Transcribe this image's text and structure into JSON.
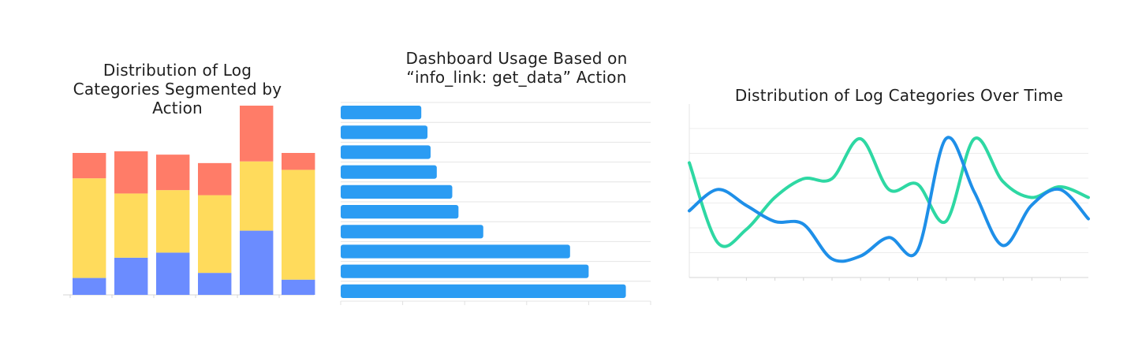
{
  "chart_data": [
    {
      "type": "bar",
      "stacked": true,
      "title_lines": [
        "Distribution of Log",
        "Categories Segmented by",
        "Action"
      ],
      "categories": [
        "",
        "",
        "",
        "",
        "",
        ""
      ],
      "series": [
        {
          "color": "#6b8cff",
          "values": [
            10,
            22,
            25,
            13,
            38,
            9
          ]
        },
        {
          "color": "#ffdb5c",
          "values": [
            59,
            38,
            37,
            46,
            41,
            65
          ]
        },
        {
          "color": "#ff7c68",
          "values": [
            15,
            25,
            21,
            19,
            33,
            10
          ]
        }
      ],
      "ylim": [
        0,
        112
      ],
      "grid": false
    },
    {
      "type": "bar",
      "orientation": "horizontal",
      "title_lines": [
        "Dashboard Usage Based on",
        "“info_link: get_data” Action"
      ],
      "categories": [
        "",
        "",
        "",
        "",
        "",
        "",
        "",
        "",
        "",
        ""
      ],
      "values": [
        13,
        14,
        14.5,
        15.5,
        18,
        19,
        23,
        37,
        40,
        46
      ],
      "xlim": [
        0,
        50
      ],
      "color": "#2b9cf3",
      "grid": true
    },
    {
      "type": "line",
      "title_lines": [
        "Distribution of Log Categories Over Time"
      ],
      "x": [
        0,
        1,
        2,
        3,
        4,
        5,
        6,
        7,
        8,
        9,
        10,
        11,
        12,
        13,
        14
      ],
      "series": [
        {
          "color": "#2ed8a3",
          "values": [
            4.3,
            1.3,
            1.8,
            3.0,
            3.7,
            3.7,
            5.2,
            3.3,
            3.5,
            2.1,
            5.2,
            3.6,
            3.0,
            3.4,
            3.0
          ]
        },
        {
          "color": "#1e8fe8",
          "values": [
            2.5,
            3.3,
            2.7,
            2.1,
            2.0,
            0.7,
            0.8,
            1.5,
            1.0,
            5.2,
            3.2,
            1.2,
            2.7,
            3.3,
            2.2
          ]
        }
      ],
      "ylim": [
        0,
        6.5
      ],
      "grid": true
    }
  ]
}
